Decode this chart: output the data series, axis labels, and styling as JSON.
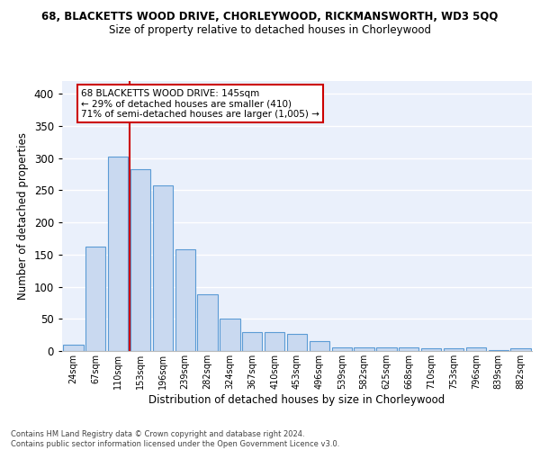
{
  "title": "68, BLACKETTS WOOD DRIVE, CHORLEYWOOD, RICKMANSWORTH, WD3 5QQ",
  "subtitle": "Size of property relative to detached houses in Chorleywood",
  "xlabel": "Distribution of detached houses by size in Chorleywood",
  "ylabel": "Number of detached properties",
  "bar_color": "#c9d9f0",
  "bar_edge_color": "#5b9bd5",
  "background_color": "#eaf0fb",
  "grid_color": "#ffffff",
  "categories": [
    "24sqm",
    "67sqm",
    "110sqm",
    "153sqm",
    "196sqm",
    "239sqm",
    "282sqm",
    "324sqm",
    "367sqm",
    "410sqm",
    "453sqm",
    "496sqm",
    "539sqm",
    "582sqm",
    "625sqm",
    "668sqm",
    "710sqm",
    "753sqm",
    "796sqm",
    "839sqm",
    "882sqm"
  ],
  "values": [
    10,
    163,
    302,
    283,
    257,
    158,
    88,
    50,
    30,
    30,
    26,
    15,
    6,
    6,
    5,
    5,
    4,
    4,
    5,
    2,
    4
  ],
  "redline_x": 2.5,
  "annotation_line1": "68 BLACKETTS WOOD DRIVE: 145sqm",
  "annotation_line2": "← 29% of detached houses are smaller (410)",
  "annotation_line3": "71% of semi-detached houses are larger (1,005) →",
  "annotation_box_color": "#ffffff",
  "annotation_box_edge": "#cc0000",
  "annotation_text_color": "#000000",
  "redline_color": "#cc0000",
  "footer_text": "Contains HM Land Registry data © Crown copyright and database right 2024.\nContains public sector information licensed under the Open Government Licence v3.0.",
  "ylim": [
    0,
    420
  ],
  "yticks": [
    0,
    50,
    100,
    150,
    200,
    250,
    300,
    350,
    400
  ]
}
